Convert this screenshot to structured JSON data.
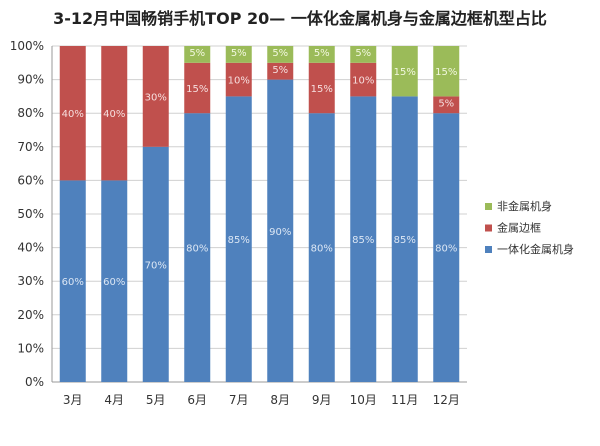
{
  "chart_data": {
    "type": "bar",
    "stacked": true,
    "title": "3-12月中国畅销手机TOP 20— 一体化金属机身与金属边框机型占比",
    "xlabel": "",
    "ylabel": "",
    "ylim": [
      0,
      100
    ],
    "yticks": [
      "0%",
      "10%",
      "20%",
      "30%",
      "40%",
      "50%",
      "60%",
      "70%",
      "80%",
      "90%",
      "100%"
    ],
    "grid": true,
    "legend_position": "right",
    "categories": [
      "3月",
      "4月",
      "5月",
      "6月",
      "7月",
      "8月",
      "9月",
      "10月",
      "11月",
      "12月"
    ],
    "series": [
      {
        "name": "一体化金属机身",
        "color": "#4f81bd",
        "label_color": "#dbe6f4",
        "values": [
          60,
          60,
          70,
          80,
          85,
          90,
          80,
          85,
          85,
          80
        ]
      },
      {
        "name": "金属边框",
        "color": "#c0504d",
        "label_color": "#f6dede",
        "values": [
          40,
          40,
          30,
          15,
          10,
          5,
          15,
          10,
          0,
          5
        ]
      },
      {
        "name": "非金属机身",
        "color": "#9bbb59",
        "label_color": "#f2f8df",
        "values": [
          0,
          0,
          0,
          5,
          5,
          5,
          5,
          5,
          15,
          15
        ]
      }
    ]
  }
}
